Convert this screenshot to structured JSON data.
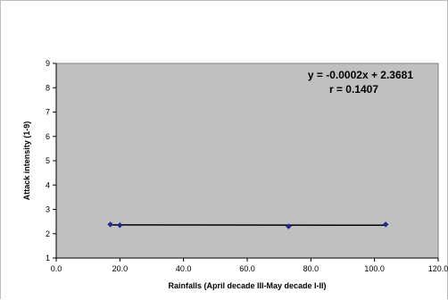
{
  "chart_data": {
    "type": "scatter",
    "title": "",
    "xlabel": "Rainfalls (April decade III-May decade I-II)",
    "ylabel": "Attack intensity (1-9)",
    "xlim": [
      0,
      120
    ],
    "ylim": [
      1,
      9
    ],
    "x_ticks": [
      "0.0",
      "20.0",
      "40.0",
      "60.0",
      "80.0",
      "100.0",
      "120.0"
    ],
    "y_ticks": [
      "1",
      "2",
      "3",
      "4",
      "5",
      "6",
      "7",
      "8",
      "9"
    ],
    "grid": false,
    "plot_background": "#c0c0c0",
    "series": [
      {
        "points": [
          {
            "x": 17.0,
            "y": 2.38
          },
          {
            "x": 20.0,
            "y": 2.35
          },
          {
            "x": 73.0,
            "y": 2.3
          },
          {
            "x": 103.5,
            "y": 2.38
          }
        ],
        "color": "#1f2a8a",
        "marker": "diamond"
      }
    ],
    "trendline": {
      "slope": -0.0002,
      "intercept": 2.3681,
      "x_range": [
        17.0,
        103.5
      ],
      "color": "#000000"
    },
    "annotations": [
      "y = -0.0002x + 2.3681",
      "r = 0.1407"
    ]
  }
}
